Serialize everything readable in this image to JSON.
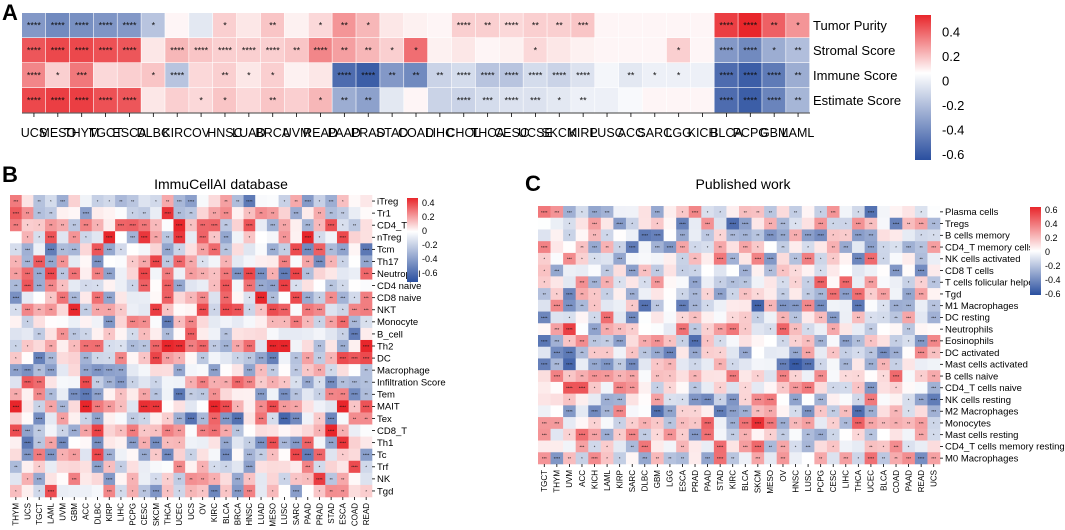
{
  "palette": {
    "low": "#2a4f9f",
    "mid": "#ffffff",
    "high": "#e8262b"
  },
  "panels": [
    {
      "id": "A",
      "letter": "A",
      "type": "heatmap",
      "title": "",
      "columns": [
        "UCS",
        "MESO",
        "THYM",
        "TGCT",
        "ESCA",
        "DLBC",
        "KIRC",
        "OV",
        "HNSC",
        "LUAD",
        "BRCA",
        "UVM",
        "READ",
        "PAAD",
        "PRAD",
        "STAD",
        "COAD",
        "LIHC",
        "CHOL",
        "THCA",
        "CESC",
        "UCSE",
        "SKCM",
        "KIRP",
        "LUSC",
        "ACC",
        "SARC",
        "LGG",
        "KICH",
        "BLCA",
        "PCPG",
        "GBM",
        "LAML"
      ],
      "rows": [
        "Tumor Purity",
        "Stromal Score",
        "Immune Score",
        "Estimate Score"
      ],
      "values": [
        [
          -0.35,
          -0.4,
          -0.38,
          -0.36,
          -0.35,
          -0.2,
          0.02,
          -0.08,
          0.1,
          0.05,
          0.12,
          0.03,
          0.08,
          0.22,
          0.15,
          0.05,
          0.03,
          0.02,
          0.1,
          0.1,
          0.08,
          0.1,
          0.1,
          0.12,
          0.02,
          0.02,
          0.02,
          0.02,
          0.02,
          0.4,
          0.5,
          0.33,
          0.22
        ],
        [
          0.35,
          0.38,
          0.38,
          0.36,
          0.35,
          0.05,
          0.15,
          0.12,
          0.1,
          0.1,
          0.1,
          0.12,
          0.25,
          0.2,
          0.15,
          0.1,
          0.3,
          0.03,
          0.05,
          0.02,
          0.03,
          0.08,
          0.05,
          0.03,
          0.02,
          0.02,
          0.02,
          0.1,
          0.02,
          -0.35,
          -0.4,
          -0.28,
          -0.22
        ],
        [
          0.25,
          0.1,
          0.28,
          0.08,
          0.1,
          0.12,
          -0.2,
          0.08,
          0.1,
          0.05,
          0.1,
          0.03,
          0.05,
          -0.5,
          -0.55,
          -0.35,
          -0.4,
          -0.15,
          -0.12,
          -0.2,
          -0.2,
          -0.12,
          -0.15,
          -0.1,
          -0.03,
          -0.08,
          -0.05,
          -0.05,
          -0.05,
          -0.5,
          -0.55,
          -0.45,
          -0.28
        ],
        [
          0.38,
          0.4,
          0.4,
          0.36,
          0.35,
          0.05,
          0.1,
          0.08,
          0.12,
          0.08,
          0.12,
          0.1,
          0.15,
          -0.28,
          -0.32,
          -0.08,
          0.02,
          -0.15,
          -0.15,
          -0.12,
          -0.1,
          -0.1,
          -0.08,
          -0.05,
          -0.05,
          -0.02,
          0.02,
          0.02,
          0.02,
          -0.5,
          -0.55,
          -0.42,
          -0.25
        ]
      ],
      "stars": [
        [
          "****",
          "****",
          "****",
          "****",
          "****",
          "*",
          "",
          "",
          "*",
          "",
          "**",
          "",
          "*",
          "**",
          "*",
          "",
          "",
          "",
          "****",
          "**",
          "****",
          "**",
          "**",
          "***",
          "",
          "",
          "",
          "",
          "",
          "****",
          "****",
          "**",
          "*"
        ],
        [
          "****",
          "****",
          "****",
          "****",
          "****",
          "",
          "****",
          "****",
          "****",
          "****",
          "****",
          "**",
          "****",
          "**",
          "**",
          "*",
          "*",
          "",
          "",
          "",
          "",
          "*",
          "",
          "",
          "",
          "",
          "",
          "*",
          "",
          "****",
          "****",
          "*",
          "**"
        ],
        [
          "****",
          "*",
          "***",
          "",
          "",
          "*",
          "****",
          "",
          "**",
          "*",
          "*",
          "",
          "",
          "****",
          "****",
          "**",
          "**",
          "**",
          "****",
          "****",
          "****",
          "****",
          "****",
          "****",
          "",
          "**",
          "*",
          "*",
          "",
          "****",
          "****",
          "****",
          "**"
        ],
        [
          "****",
          "****",
          "****",
          "****",
          "****",
          "",
          "",
          "*",
          "*",
          "",
          "**",
          "",
          "*",
          "**",
          "**",
          "",
          "",
          "",
          "****",
          "***",
          "****",
          "***",
          "*",
          "**",
          "",
          "",
          "",
          "",
          "",
          "****",
          "****",
          "****",
          "**"
        ]
      ],
      "scale": {
        "ticks": [
          "0.4",
          "0.2",
          "0",
          "-0.2",
          "-0.4",
          "-0.6"
        ]
      }
    },
    {
      "id": "B",
      "letter": "B",
      "type": "heatmap",
      "title": "ImmuCellAI database",
      "columns": [
        "THYM",
        "UCS",
        "TGCT",
        "LAML",
        "UVM",
        "GBM",
        "ACC",
        "DLBC",
        "KIRP",
        "LIHC",
        "PCPG",
        "CESC",
        "SKCM",
        "THCA",
        "UCEC",
        "UCS",
        "OV",
        "KIRC",
        "BLCA",
        "BRCA",
        "HNSC",
        "LUAD",
        "MESO",
        "LUSC",
        "SARC",
        "PAAD",
        "PRAD",
        "STAD",
        "ESCA",
        "COAD",
        "READ"
      ],
      "rows": [
        "iTreg",
        "Tr1",
        "CD4_T",
        "nTreg",
        "Tcm",
        "Th17",
        "Neutrophil",
        "CD4 naive",
        "CD8 naive",
        "NKT",
        "Monocyte",
        "B_cell",
        "Th2",
        "DC",
        "Macrophage",
        "Infiltration Score",
        "Tem",
        "MAIT",
        "Tex",
        "CD8_T",
        "Th1",
        "Tc",
        "Trf",
        "NK",
        "Tgd"
      ],
      "scale": {
        "ticks": [
          "0.4",
          "0.2",
          "0",
          "-0.2",
          "-0.4",
          "-0.6"
        ]
      },
      "seed": 17
    },
    {
      "id": "C",
      "letter": "C",
      "type": "heatmap",
      "title": "Published work",
      "columns": [
        "TGCT",
        "THYM",
        "UVM",
        "ACC",
        "KICH",
        "LAML",
        "KIRP",
        "SARC",
        "DLBC",
        "GBM",
        "LGG",
        "ESCA",
        "PRAD",
        "PAAD",
        "STAD",
        "KIRC",
        "BLCA",
        "SKCM",
        "MESO",
        "OV",
        "HNSC",
        "LUSC",
        "PCPG",
        "CESC",
        "LIHC",
        "THCA",
        "UCEC",
        "BLCA",
        "COAD",
        "PAAD",
        "READ",
        "UCS"
      ],
      "rows": [
        "Plasma cells",
        "Tregs",
        "B cells memory",
        "CD4_T memory cells",
        "NK cells activated",
        "CD8 T cells",
        "T cells folicular helper",
        "Tgd",
        "M1 Macrophages",
        "DC resting",
        "Neutrophils",
        "Eosinophils",
        "DC activated",
        "Mast cells activated",
        "B cells naive",
        "CD4_T cells naive",
        "NK cells resting",
        "M2 Macrophages",
        "Monocytes",
        "Mast cells resting",
        "CD4_T cells memory resting",
        "M0 Macrophages"
      ],
      "scale": {
        "ticks": [
          "0.6",
          "0.4",
          "0.2",
          "0",
          "-0.2",
          "-0.4",
          "-0.6"
        ]
      },
      "seed": 41
    }
  ]
}
